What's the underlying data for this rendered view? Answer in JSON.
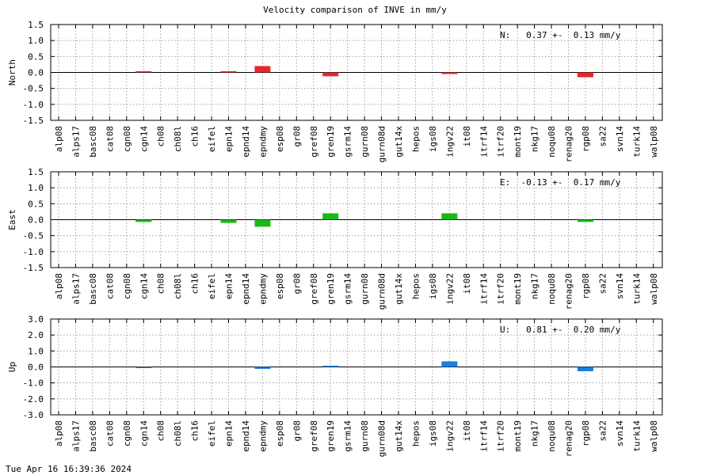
{
  "title": "Velocity comparison of INVE in mm/y",
  "timestamp": "Tue Apr 16 16:39:36 2024",
  "chart_data": {
    "type": "bar",
    "categories": [
      "alp08",
      "alps17",
      "basc08",
      "cat08",
      "cgn08",
      "cgn14",
      "ch08",
      "ch08l",
      "ch16",
      "eifel",
      "epn14",
      "epnd14",
      "epndmy",
      "esp08",
      "gr08",
      "gref08",
      "gren19",
      "gsrm14",
      "gurn08",
      "gurn08d",
      "gut14x",
      "hepos",
      "igs08",
      "ingv22",
      "it08",
      "itrf14",
      "itrf20",
      "mont19",
      "nkg17",
      "noqu08",
      "renag20",
      "rgp08",
      "sa22",
      "svn14",
      "turk14",
      "walp08"
    ],
    "panels": [
      {
        "ylabel": "North",
        "ylim": [
          -1.5,
          1.5
        ],
        "yticks": [
          "1.5",
          "1.0",
          "0.5",
          "0.0",
          "-0.5",
          "-1.0",
          "-1.5"
        ],
        "stat": "N:   0.37 +-  0.13 mm/y",
        "color": "#e8262c",
        "values": [
          0,
          0,
          0,
          0,
          0,
          0.02,
          0,
          0,
          0,
          0,
          0.02,
          0,
          0.2,
          0,
          0,
          0,
          -0.12,
          0,
          0,
          0,
          0,
          0,
          0,
          -0.05,
          0,
          0,
          0,
          0,
          0,
          0,
          0,
          -0.15,
          0,
          0,
          0,
          0
        ]
      },
      {
        "ylabel": "East",
        "ylim": [
          -1.5,
          1.5
        ],
        "yticks": [
          "1.5",
          "1.0",
          "0.5",
          "0.0",
          "-0.5",
          "-1.0",
          "-1.5"
        ],
        "stat": "E:  -0.13 +-  0.17 mm/y",
        "color": "#17b817",
        "values": [
          0,
          0,
          0,
          0,
          0,
          -0.07,
          0,
          0,
          0,
          0,
          -0.1,
          0,
          -0.22,
          0,
          0,
          0,
          0.2,
          0,
          0,
          0,
          0,
          0,
          0,
          0.2,
          0,
          0,
          0,
          0,
          0,
          0,
          0,
          -0.07,
          0,
          0,
          0,
          0
        ]
      },
      {
        "ylabel": "Up",
        "ylim": [
          -3.0,
          3.0
        ],
        "yticks": [
          "3.0",
          "2.0",
          "1.0",
          "0.0",
          "-1.0",
          "-2.0",
          "-3.0"
        ],
        "stat": "U:   0.81 +-  0.20 mm/y",
        "color": "#1a7de0",
        "values": [
          0,
          0,
          0,
          0,
          0,
          -0.07,
          0,
          0,
          0,
          0,
          0,
          0,
          -0.12,
          0,
          0,
          0,
          0.05,
          0,
          0,
          0,
          0,
          0,
          0,
          0.35,
          0,
          0,
          0,
          0,
          0,
          0,
          0,
          -0.27,
          0,
          0,
          0,
          0
        ]
      }
    ]
  }
}
